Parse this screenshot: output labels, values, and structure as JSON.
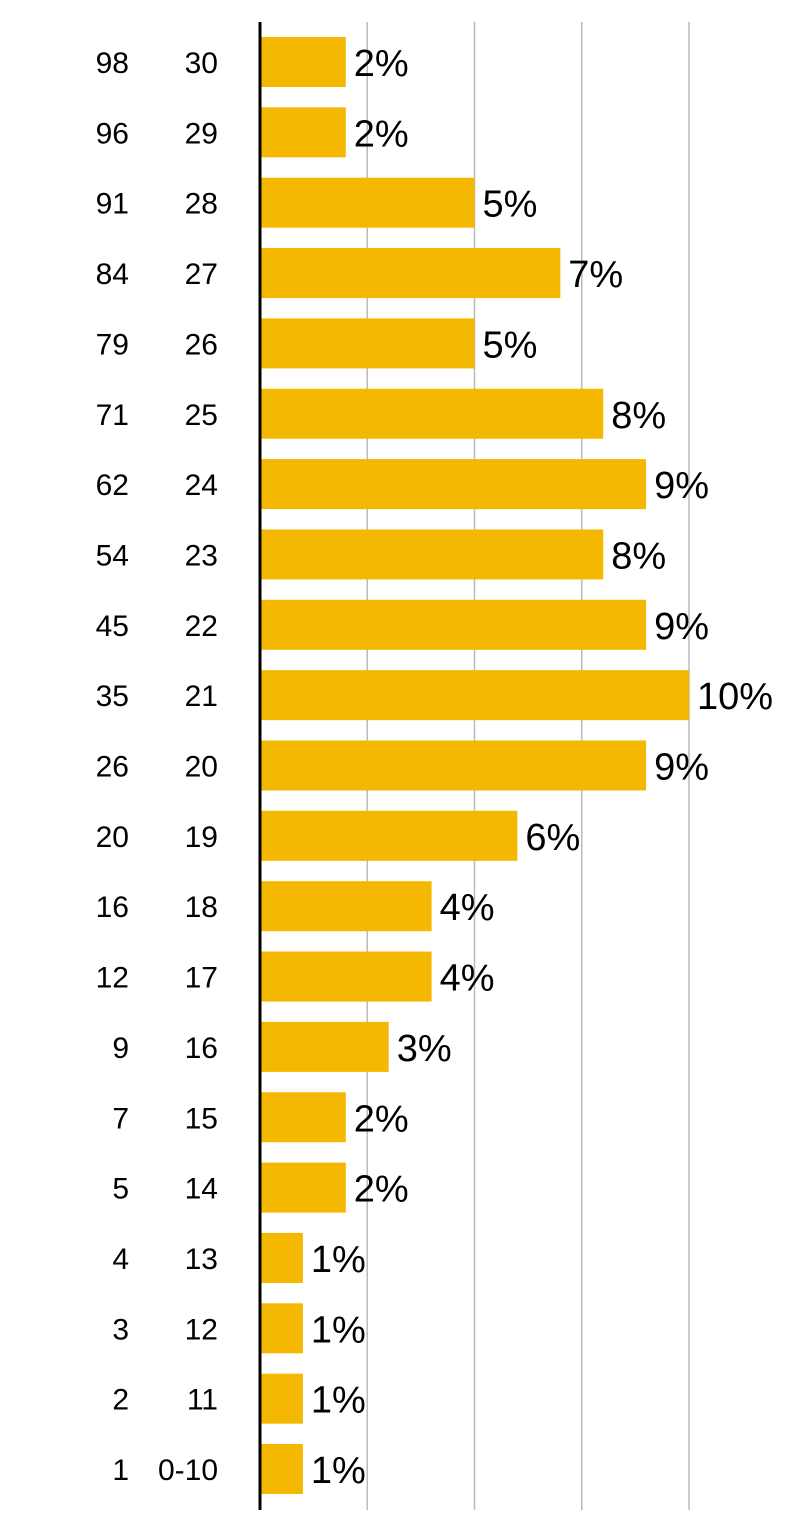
{
  "chart_data": {
    "type": "bar",
    "orientation": "horizontal",
    "categories": [
      "30",
      "29",
      "28",
      "27",
      "26",
      "25",
      "24",
      "23",
      "22",
      "21",
      "20",
      "19",
      "18",
      "17",
      "16",
      "15",
      "14",
      "13",
      "12",
      "11",
      "0-10"
    ],
    "percentiles": [
      "98",
      "96",
      "91",
      "84",
      "79",
      "71",
      "62",
      "54",
      "45",
      "35",
      "26",
      "20",
      "16",
      "12",
      "9",
      "7",
      "5",
      "4",
      "3",
      "2",
      "1"
    ],
    "values": [
      2,
      2,
      5,
      7,
      5,
      8,
      9,
      8,
      9,
      10,
      9,
      6,
      4,
      4,
      3,
      2,
      2,
      1,
      1,
      1,
      1
    ],
    "data_labels": [
      "2%",
      "2%",
      "5%",
      "7%",
      "5%",
      "8%",
      "9%",
      "8%",
      "9%",
      "10%",
      "9%",
      "6%",
      "4%",
      "4%",
      "3%",
      "2%",
      "2%",
      "1%",
      "1%",
      "1%",
      "1%"
    ],
    "xlim": [
      0,
      12.5
    ],
    "grid": true,
    "gridlines_at": [
      2.5,
      5,
      7.5,
      10
    ],
    "bar_color": "#F5B800",
    "grid_color": "#BBBBBB",
    "axis_color": "#000000",
    "title": "",
    "xlabel": "",
    "ylabel": ""
  }
}
